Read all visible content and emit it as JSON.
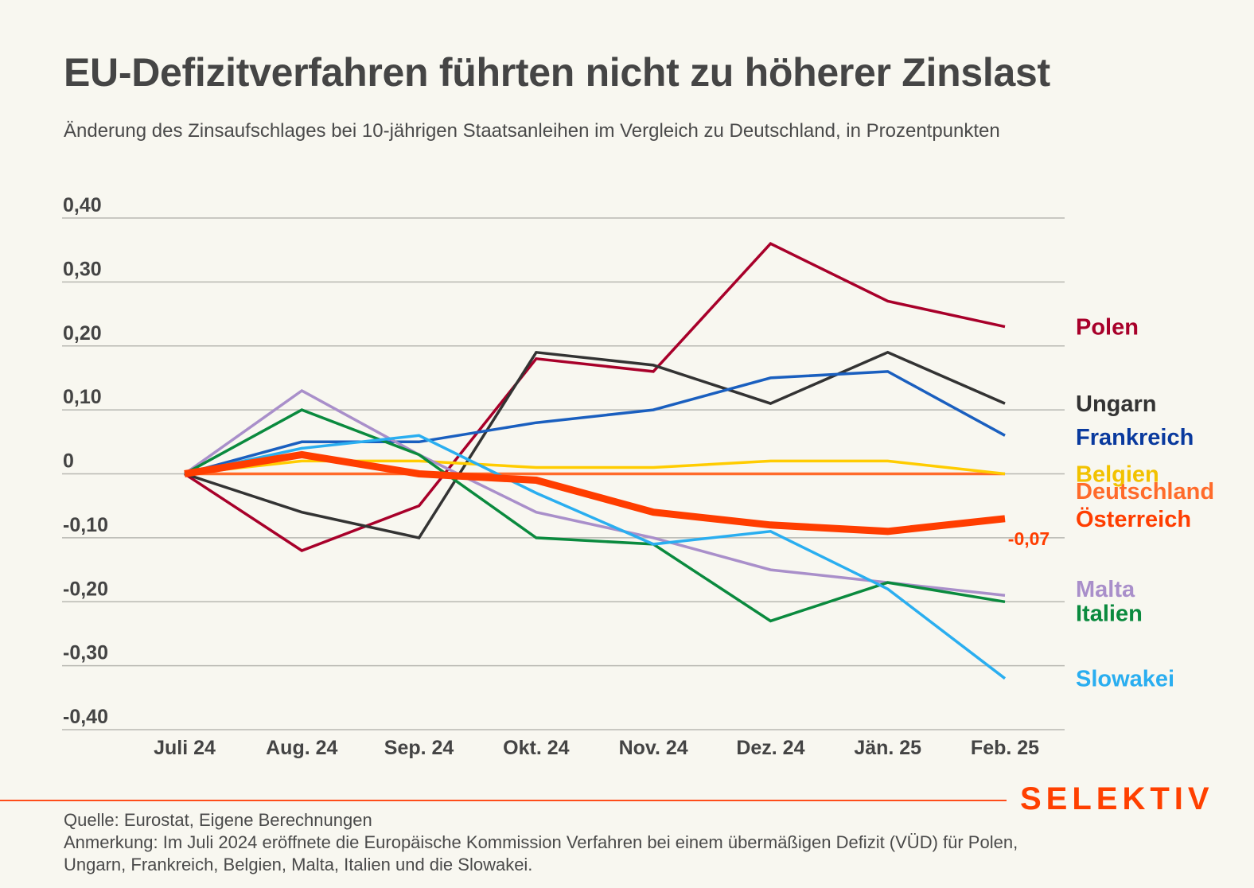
{
  "header": {
    "title": "EU-Defizitverfahren führten nicht zu höherer Zinslast",
    "subtitle": "Änderung des Zinsaufschlages bei 10-jährigen Staatsanleihen im Vergleich zu Deutschland, in Prozentpunkten"
  },
  "footer": {
    "source": "Quelle: Eurostat, Eigene Berechnungen",
    "note_line1": "Anmerkung: Im Juli 2024 eröffnete die Europäische Kommission Verfahren bei einem übermäßigen Defizit (VÜD) für Polen,",
    "note_line2": "Ungarn, Frankreich, Belgien, Malta, Italien und die Slowakei.",
    "brand": "SELEKTIV",
    "brand_color": "#ff4000"
  },
  "chart_data": {
    "type": "line",
    "title": "EU-Defizitverfahren führten nicht zu höherer Zinslast",
    "subtitle": "Änderung des Zinsaufschlages bei 10-jährigen Staatsanleihen im Vergleich zu Deutschland, in Prozentpunkten",
    "xlabel": "",
    "ylabel": "",
    "categories": [
      "Juli 24",
      "Aug. 24",
      "Sep. 24",
      "Okt. 24",
      "Nov. 24",
      "Dez. 24",
      "Jän. 25",
      "Feb. 25"
    ],
    "ylim": [
      -0.4,
      0.4
    ],
    "yticks": [
      0.4,
      0.3,
      0.2,
      0.1,
      0,
      -0.1,
      -0.2,
      -0.3,
      -0.4
    ],
    "ytick_labels": [
      "0,40",
      "0,30",
      "0,20",
      "0,10",
      "0",
      "-0,10",
      "-0,20",
      "-0,30",
      "-0,40"
    ],
    "grid": true,
    "legend": "direct labels right",
    "series": [
      {
        "name": "Polen",
        "color": "#a8002a",
        "emphasis": false,
        "values": [
          0,
          -0.12,
          -0.05,
          0.18,
          0.16,
          0.36,
          0.27,
          0.23
        ]
      },
      {
        "name": "Ungarn",
        "color": "#333333",
        "emphasis": false,
        "values": [
          0,
          -0.06,
          -0.1,
          0.19,
          0.17,
          0.11,
          0.19,
          0.11
        ]
      },
      {
        "name": "Frankreich",
        "color": "#1a5fbf",
        "label_color": "#0a3a9e",
        "emphasis": false,
        "values": [
          0,
          0.05,
          0.05,
          0.08,
          0.1,
          0.15,
          0.16,
          0.06
        ]
      },
      {
        "name": "Belgien",
        "color": "#ffcc00",
        "label_color": "#f2c200",
        "emphasis": false,
        "values": [
          0,
          0.02,
          0.02,
          0.01,
          0.01,
          0.02,
          0.02,
          0.0
        ]
      },
      {
        "name": "Deutschland",
        "color": "#ff6b2b",
        "emphasis": false,
        "values": [
          0,
          0,
          0,
          0,
          0,
          0,
          0,
          0
        ]
      },
      {
        "name": "Malta",
        "color": "#a98fca",
        "emphasis": false,
        "values": [
          0,
          0.13,
          0.03,
          -0.06,
          -0.1,
          -0.15,
          -0.17,
          -0.19
        ]
      },
      {
        "name": "Italien",
        "color": "#0a8a3e",
        "emphasis": false,
        "values": [
          0,
          0.1,
          0.03,
          -0.1,
          -0.11,
          -0.23,
          -0.17,
          -0.2
        ]
      },
      {
        "name": "Slowakei",
        "color": "#2aaef0",
        "emphasis": false,
        "values": [
          0,
          0.04,
          0.06,
          -0.03,
          -0.11,
          -0.09,
          -0.18,
          -0.32
        ]
      },
      {
        "name": "Österreich",
        "color": "#ff3d00",
        "emphasis": true,
        "values": [
          0,
          0.03,
          0.0,
          -0.01,
          -0.06,
          -0.08,
          -0.09,
          -0.07
        ]
      }
    ],
    "annotations": [
      {
        "series": "Österreich",
        "category": "Feb. 25",
        "text": "-0,07",
        "color": "#ff3d00"
      }
    ],
    "series_labels": [
      {
        "name": "Polen",
        "anchor_value": 0.23
      },
      {
        "name": "Ungarn",
        "anchor_value": 0.11
      },
      {
        "name": "Frankreich",
        "anchor_value": 0.058
      },
      {
        "name": "Belgien",
        "anchor_value": 0.0
      },
      {
        "name": "Deutschland",
        "anchor_value": -0.027
      },
      {
        "name": "Österreich",
        "anchor_value": -0.07
      },
      {
        "name": "Malta",
        "anchor_value": -0.18
      },
      {
        "name": "Italien",
        "anchor_value": -0.218
      },
      {
        "name": "Slowakei",
        "anchor_value": -0.32
      }
    ]
  }
}
